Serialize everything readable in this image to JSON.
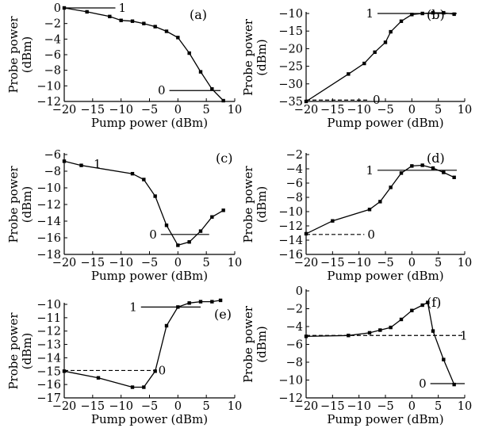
{
  "chart_data": [
    {
      "type": "line",
      "panel_label": "(a)",
      "xlabel": "Pump power (dBm)",
      "ylabel": [
        "Probe power",
        "(dBm)"
      ],
      "xlim": [
        -20,
        10
      ],
      "ylim": [
        -12,
        0
      ],
      "x_ticks": [
        -20,
        -15,
        -10,
        -5,
        0,
        5,
        10
      ],
      "y_ticks": [
        0,
        -2,
        -4,
        -6,
        -8,
        -10,
        -12
      ],
      "series": [
        {
          "x": [
            -20,
            -16,
            -12,
            -10,
            -8,
            -6,
            -4,
            -2,
            0,
            2,
            4,
            6,
            8
          ],
          "y": [
            0,
            -0.5,
            -1.1,
            -1.6,
            -1.7,
            -2.0,
            -2.4,
            -3.0,
            -3.8,
            -5.8,
            -8.2,
            -10.4,
            -11.9
          ]
        }
      ],
      "levels": [
        {
          "label": "1",
          "y": 0,
          "x_range": [
            -20,
            -11
          ],
          "dashed": false
        },
        {
          "label": "0",
          "y": -10.6,
          "x_range": [
            -1.5,
            7.5
          ],
          "dashed": false
        }
      ]
    },
    {
      "type": "line",
      "panel_label": "(b)",
      "xlabel": "Pump power (dBm)",
      "ylabel": [
        "Probe power",
        "(dBm)"
      ],
      "xlim": [
        -20,
        10
      ],
      "ylim": [
        -35,
        -10
      ],
      "x_ticks": [
        -20,
        -15,
        -10,
        -5,
        0,
        5,
        10
      ],
      "y_ticks": [
        -10,
        -15,
        -20,
        -25,
        -30,
        -35
      ],
      "series": [
        {
          "x": [
            -20,
            -12,
            -9,
            -7,
            -5,
            -4,
            -2,
            0,
            2,
            4,
            6,
            8
          ],
          "y": [
            -35,
            -27.2,
            -24.2,
            -21,
            -18.2,
            -15.2,
            -12.2,
            -10.3,
            -10.0,
            -9.8,
            -9.8,
            -10.2
          ]
        }
      ],
      "levels": [
        {
          "label": "1",
          "y": -10,
          "x_range": [
            -6.5,
            8.5
          ],
          "dashed": false
        },
        {
          "label": "0",
          "y": -34.6,
          "x_range": [
            -20,
            -8
          ],
          "dashed": true
        }
      ]
    },
    {
      "type": "line",
      "panel_label": "(c)",
      "xlabel": "Pump power (dBm)",
      "ylabel": [
        "Probe power",
        "(dBm)"
      ],
      "xlim": [
        -20,
        10
      ],
      "ylim": [
        -18,
        -6
      ],
      "x_ticks": [
        -20,
        -15,
        -10,
        -5,
        0,
        5,
        10
      ],
      "y_ticks": [
        -6,
        -8,
        -10,
        -12,
        -14,
        -16,
        -18
      ],
      "series": [
        {
          "x": [
            -20,
            -17,
            -8,
            -6,
            -4,
            -2,
            0,
            2,
            4,
            6,
            8
          ],
          "y": [
            -6.8,
            -7.3,
            -8.3,
            -9.0,
            -11.0,
            -14.5,
            -16.9,
            -16.5,
            -15.2,
            -13.5,
            -12.7
          ]
        }
      ],
      "levels": [
        {
          "label": "1",
          "y": null,
          "x_range": null,
          "dashed": false
        },
        {
          "label": "0",
          "y": -15.6,
          "x_range": [
            -3,
            5.5
          ],
          "dashed": false
        }
      ]
    },
    {
      "type": "line",
      "panel_label": "(d)",
      "xlabel": "Pump power (dBm)",
      "ylabel": [
        "Probe power",
        "(dBm)"
      ],
      "xlim": [
        -20,
        10
      ],
      "ylim": [
        -16,
        -2
      ],
      "x_ticks": [
        -20,
        -15,
        -10,
        -5,
        0,
        5,
        10
      ],
      "y_ticks": [
        -2,
        -4,
        -6,
        -8,
        -10,
        -12,
        -14,
        -16
      ],
      "series": [
        {
          "x": [
            -20,
            -15,
            -8,
            -6,
            -4,
            -2,
            0,
            2,
            4,
            6,
            8
          ],
          "y": [
            -13.1,
            -11.3,
            -9.7,
            -8.6,
            -6.6,
            -4.6,
            -3.6,
            -3.5,
            -3.9,
            -4.5,
            -5.2
          ]
        }
      ],
      "levels": [
        {
          "label": "1",
          "y": -4.2,
          "x_range": [
            -6.5,
            8.5
          ],
          "dashed": false
        },
        {
          "label": "0",
          "y": -13.2,
          "x_range": [
            -20,
            -9
          ],
          "dashed": true
        }
      ]
    },
    {
      "type": "line",
      "panel_label": "(e)",
      "xlabel": "Pump power (dBm)",
      "ylabel": [
        "Probe power",
        "(dBm)"
      ],
      "xlim": [
        -20,
        10
      ],
      "ylim": [
        -17,
        -10
      ],
      "x_ticks": [
        -20,
        -15,
        -10,
        -5,
        0,
        5,
        10
      ],
      "y_ticks": [
        -10,
        -11,
        -12,
        -13,
        -14,
        -15,
        -16,
        -17
      ],
      "series": [
        {
          "x": [
            -20,
            -14,
            -8,
            -6,
            -4,
            -2,
            0,
            2,
            4,
            6,
            7.5
          ],
          "y": [
            -15.0,
            -15.5,
            -16.2,
            -16.2,
            -15.0,
            -11.6,
            -10.2,
            -9.9,
            -9.8,
            -9.8,
            -9.7
          ]
        }
      ],
      "levels": [
        {
          "label": "1",
          "y": -10.2,
          "x_range": [
            -6.5,
            4
          ],
          "dashed": false
        },
        {
          "label": "0",
          "y": -14.95,
          "x_range": [
            -20,
            -4
          ],
          "dashed": true
        }
      ]
    },
    {
      "type": "line",
      "panel_label": "(f)",
      "xlabel": "Pump power (dBm)",
      "ylabel": [
        "Probe power",
        "(dBm)"
      ],
      "xlim": [
        -20,
        10
      ],
      "ylim": [
        -12,
        0
      ],
      "x_ticks": [
        -20,
        -15,
        -10,
        -5,
        0,
        5,
        10
      ],
      "y_ticks": [
        0,
        -2,
        -4,
        -6,
        -8,
        -10,
        -12
      ],
      "series": [
        {
          "x": [
            -20,
            -12,
            -8,
            -6,
            -4,
            -2,
            0,
            2,
            3,
            4,
            6,
            8
          ],
          "y": [
            -5.1,
            -5.0,
            -4.7,
            -4.4,
            -4.1,
            -3.2,
            -2.2,
            -1.6,
            -1.3,
            -4.5,
            -7.7,
            -10.5
          ]
        }
      ],
      "levels": [
        {
          "label": "1",
          "y": -5.0,
          "x_range": [
            -20,
            10
          ],
          "dashed": true
        },
        {
          "label": "0",
          "y": -10.4,
          "x_range": [
            3.5,
            10
          ],
          "dashed": false
        }
      ]
    }
  ]
}
